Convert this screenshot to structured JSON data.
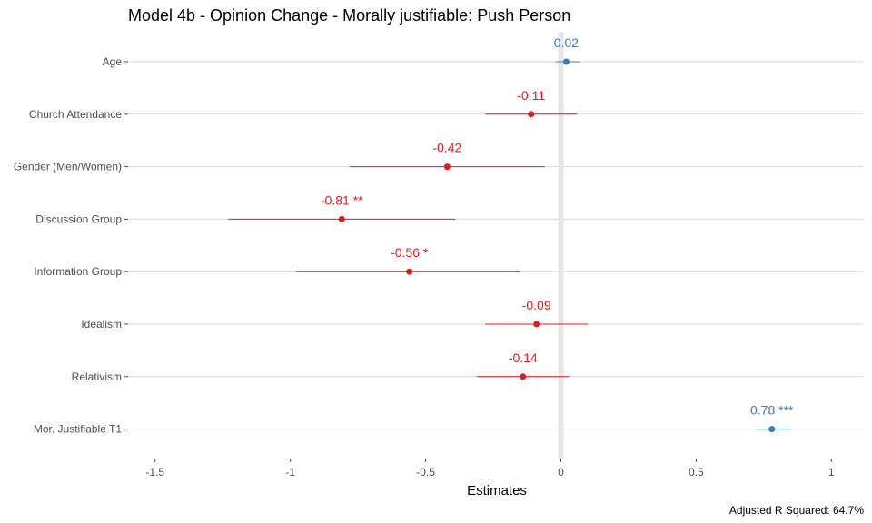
{
  "chart_data": {
    "type": "scatter",
    "title": "Model 4b - Opinion Change - Morally justifiable: Push Person",
    "xlabel": "Estimates",
    "ylabel": "",
    "caption": "Adjusted R Squared: 64.7%",
    "xlim": [
      -1.6,
      1.12
    ],
    "x_ticks": [
      {
        "value": -1.5,
        "label": "-1.5"
      },
      {
        "value": -1,
        "label": "-1"
      },
      {
        "value": -0.5,
        "label": "-0.5"
      },
      {
        "value": 0,
        "label": "0"
      },
      {
        "value": 0.5,
        "label": "0.5"
      },
      {
        "value": 1,
        "label": "1"
      }
    ],
    "colors": {
      "positive": "#377eb8",
      "negative": "#e41a1c"
    },
    "terms": [
      {
        "name": "Age",
        "estimate": 0.02,
        "ci_low": -0.02,
        "ci_high": 0.07,
        "label": "0.02"
      },
      {
        "name": "Church Attendance",
        "estimate": -0.11,
        "ci_low": -0.28,
        "ci_high": 0.06,
        "label": "-0.11"
      },
      {
        "name": "Gender (Men/Women)",
        "estimate": -0.42,
        "ci_low": -0.78,
        "ci_high": -0.06,
        "label": "-0.42"
      },
      {
        "name": "Discussion Group",
        "estimate": -0.81,
        "ci_low": -1.23,
        "ci_high": -0.39,
        "label": "-0.81 **"
      },
      {
        "name": "Information Group",
        "estimate": -0.56,
        "ci_low": -0.98,
        "ci_high": -0.15,
        "label": "-0.56 *"
      },
      {
        "name": "Idealism",
        "estimate": -0.09,
        "ci_low": -0.28,
        "ci_high": 0.1,
        "label": "-0.09"
      },
      {
        "name": "Relativism",
        "estimate": -0.14,
        "ci_low": -0.31,
        "ci_high": 0.03,
        "label": "-0.14"
      },
      {
        "name": "Mor. Justifiable T1",
        "estimate": 0.78,
        "ci_low": 0.72,
        "ci_high": 0.85,
        "label": "0.78 ***"
      }
    ]
  }
}
